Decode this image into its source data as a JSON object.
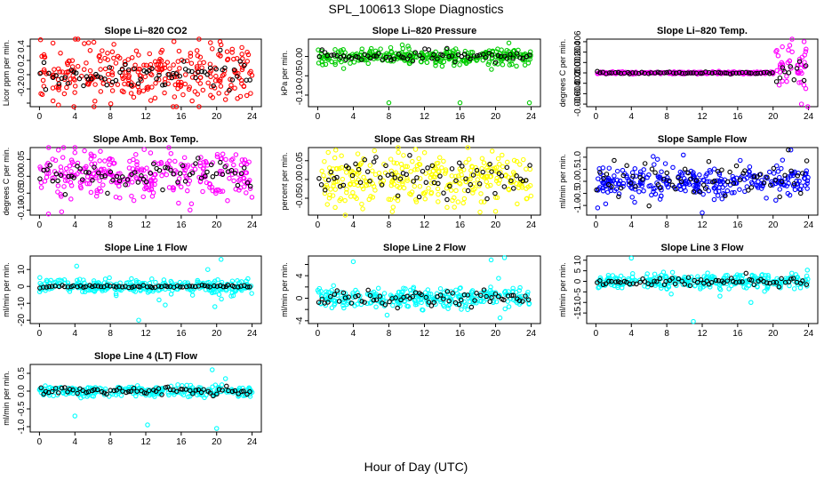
{
  "figure": {
    "title": "SPL_100613  Slope Diagnostics",
    "xlabel": "Hour of Day (UTC)"
  },
  "chart_data": [
    {
      "type": "scatter",
      "title": "Slope Li–820 CO2",
      "ylabel": "Licor ppm per min.",
      "color": "#ff0000",
      "xlim": [
        0,
        24
      ],
      "xticks": [
        0,
        4,
        8,
        12,
        16,
        20,
        24
      ],
      "ylim": [
        -0.45,
        0.5
      ],
      "yticks": [
        -0.4,
        -0.2,
        0.0,
        0.2,
        0.4
      ],
      "ytick_labels": [
        "",
        "-0.2",
        "0.0",
        "0.2",
        "0.4"
      ],
      "black_mean": 0.0,
      "black_sd": 0.1,
      "colored_sd": 0.2,
      "seed": 11,
      "outliers": [
        {
          "x": 19.3,
          "y": 0.45
        },
        {
          "x": 20.5,
          "y": 0.42
        },
        {
          "x": 21.0,
          "y": -0.35
        }
      ]
    },
    {
      "type": "scatter",
      "title": "Slope Li–820 Pressure",
      "ylabel": "kPa per min.",
      "color": "#00cc00",
      "xlim": [
        0,
        24
      ],
      "xticks": [
        0,
        4,
        8,
        12,
        16,
        20,
        24
      ],
      "ylim": [
        -0.13,
        0.045
      ],
      "yticks": [
        -0.1,
        -0.05,
        0.0
      ],
      "ytick_labels": [
        "-0.10",
        "-0.05",
        "0.00"
      ],
      "black_mean": 0.0,
      "black_sd": 0.006,
      "colored_sd": 0.01,
      "seed": 22,
      "outliers": [
        {
          "x": 8.0,
          "y": -0.12
        },
        {
          "x": 16.0,
          "y": -0.12
        },
        {
          "x": 23.8,
          "y": -0.12
        },
        {
          "x": 9.5,
          "y": 0.03
        },
        {
          "x": 21.5,
          "y": 0.035
        }
      ]
    },
    {
      "type": "scatter",
      "title": "Slope Li–820 Temp.",
      "ylabel": "degrees C per min.",
      "color": "#ff00ff",
      "xlim": [
        0,
        24
      ],
      "xticks": [
        0,
        4,
        8,
        12,
        16,
        20,
        24
      ],
      "ylim": [
        -0.0065,
        0.0065
      ],
      "yticks": [
        -0.006,
        -0.004,
        -0.002,
        0.0,
        0.002,
        0.004,
        0.006
      ],
      "ytick_labels": [
        "-0.006",
        "-0.004",
        "-0.002",
        "0.000",
        "0.002",
        "0.004",
        "0.006"
      ],
      "black_mean": 0.0,
      "black_sd": 0.0001,
      "colored_sd": 0.0001,
      "seed": 33,
      "late_spread": {
        "from": 20.0,
        "sd": 0.003
      },
      "outliers": [
        {
          "x": 23.5,
          "y": 0.006
        },
        {
          "x": 23.2,
          "y": -0.006
        }
      ]
    },
    {
      "type": "scatter",
      "title": "Slope Amb. Box Temp.",
      "ylabel": "degrees C per min.",
      "color": "#ff00ff",
      "xlim": [
        0,
        24
      ],
      "xticks": [
        0,
        4,
        8,
        12,
        16,
        20,
        24
      ],
      "ylim": [
        -0.115,
        0.085
      ],
      "yticks": [
        -0.1,
        -0.05,
        0.0,
        0.05
      ],
      "ytick_labels": [
        "-0.10",
        "-0.05",
        "0.00",
        "0.05"
      ],
      "black_mean": 0.0,
      "black_sd": 0.02,
      "colored_sd": 0.035,
      "seed": 44,
      "outliers": [
        {
          "x": 2.5,
          "y": -0.105
        },
        {
          "x": 4.0,
          "y": 0.07
        },
        {
          "x": 17.0,
          "y": -0.1
        }
      ]
    },
    {
      "type": "scatter",
      "title": "Slope Gas Stream RH",
      "ylabel": "percent per min.",
      "color": "#ffff00",
      "xlim": [
        0,
        24
      ],
      "xticks": [
        0,
        4,
        8,
        12,
        16,
        20,
        24
      ],
      "ylim": [
        -0.095,
        0.085
      ],
      "yticks": [
        -0.05,
        0.0,
        0.05
      ],
      "ytick_labels": [
        "-0.05",
        "0.00",
        "0.05"
      ],
      "black_mean": 0.0,
      "black_sd": 0.025,
      "colored_sd": 0.035,
      "seed": 55,
      "outliers": [
        {
          "x": 11.0,
          "y": 0.08
        },
        {
          "x": 20.0,
          "y": -0.085
        }
      ]
    },
    {
      "type": "scatter",
      "title": "Slope Sample Flow",
      "ylabel": "ml/min per min.",
      "color": "#0000ff",
      "xlim": [
        0,
        24
      ],
      "xticks": [
        0,
        4,
        8,
        12,
        16,
        20,
        24
      ],
      "ylim": [
        -1.4,
        1.4
      ],
      "yticks": [
        -1.0,
        -0.5,
        0.0,
        0.5,
        1.0
      ],
      "ytick_labels": [
        "-1.0",
        "-0.5",
        "0.0",
        "0.5",
        "1.0"
      ],
      "black_mean": 0.0,
      "black_sd": 0.45,
      "colored_sd": 0.3,
      "seed": 66,
      "outliers": [
        {
          "x": 12.0,
          "y": -1.3
        },
        {
          "x": 22.0,
          "y": 1.3
        },
        {
          "x": 0.2,
          "y": -1.1
        }
      ]
    },
    {
      "type": "scatter",
      "title": "Slope Line 1 Flow",
      "ylabel": "ml/min per min.",
      "color": "#00ffff",
      "xlim": [
        0,
        24
      ],
      "xticks": [
        0,
        4,
        8,
        12,
        16,
        20,
        24
      ],
      "ylim": [
        -22,
        18
      ],
      "yticks": [
        -20,
        -10,
        0,
        10
      ],
      "ytick_labels": [
        "-20",
        "-10",
        "0",
        "10"
      ],
      "black_mean": 0.0,
      "black_sd": 0.4,
      "colored_sd": 2.0,
      "seed": 77,
      "outliers": [
        {
          "x": 4.2,
          "y": 12
        },
        {
          "x": 11.2,
          "y": -20
        },
        {
          "x": 13.5,
          "y": -8
        },
        {
          "x": 14.2,
          "y": -11
        },
        {
          "x": 20.5,
          "y": 16
        },
        {
          "x": 19.8,
          "y": -12
        },
        {
          "x": 19.0,
          "y": 10
        }
      ]
    },
    {
      "type": "scatter",
      "title": "Slope Line 2 Flow",
      "ylabel": "ml/min per min.",
      "color": "#00ffff",
      "xlim": [
        0,
        24
      ],
      "xticks": [
        0,
        4,
        8,
        12,
        16,
        20,
        24
      ],
      "ylim": [
        -4.5,
        7.5
      ],
      "yticks": [
        -4,
        -2,
        0,
        2,
        4,
        6
      ],
      "ytick_labels": [
        "-4",
        "",
        "0",
        "",
        "4",
        ""
      ],
      "black_mean": 0.0,
      "black_sd": 0.7,
      "colored_sd": 0.9,
      "seed": 88,
      "outliers": [
        {
          "x": 4.0,
          "y": 6.5
        },
        {
          "x": 19.5,
          "y": 6.8
        },
        {
          "x": 21.0,
          "y": 7.2
        },
        {
          "x": 20.5,
          "y": -3.5
        },
        {
          "x": 7.8,
          "y": -3.0
        },
        {
          "x": 21.5,
          "y": -1.5
        }
      ]
    },
    {
      "type": "scatter",
      "title": "Slope Line 3 Flow",
      "ylabel": "ml/min per min.",
      "color": "#00ffff",
      "xlim": [
        0,
        24
      ],
      "xticks": [
        0,
        4,
        8,
        12,
        16,
        20,
        24
      ],
      "ylim": [
        -20,
        12
      ],
      "yticks": [
        -15,
        -10,
        -5,
        0,
        5,
        10
      ],
      "ytick_labels": [
        "-15",
        "-10",
        "-5",
        "0",
        "5",
        "10"
      ],
      "black_mean": 0.0,
      "black_sd": 1.2,
      "colored_sd": 1.8,
      "seed": 99,
      "outliers": [
        {
          "x": 4.0,
          "y": 11
        },
        {
          "x": 11.0,
          "y": -19
        },
        {
          "x": 8.5,
          "y": -6
        },
        {
          "x": 14.0,
          "y": -7
        },
        {
          "x": 17.5,
          "y": -10
        }
      ]
    },
    {
      "type": "scatter",
      "title": "Slope Line 4 (LT) Flow",
      "ylabel": "ml/min per min.",
      "color": "#00ffff",
      "xlim": [
        0,
        24
      ],
      "xticks": [
        0,
        4,
        8,
        12,
        16,
        20,
        24
      ],
      "ylim": [
        -1.15,
        0.75
      ],
      "yticks": [
        -1.0,
        -0.5,
        0.0,
        0.5
      ],
      "ytick_labels": [
        "-1.0",
        "-0.5",
        "0.0",
        "0.5"
      ],
      "black_mean": 0.0,
      "black_sd": 0.06,
      "colored_sd": 0.07,
      "seed": 111,
      "outliers": [
        {
          "x": 4.0,
          "y": -0.7
        },
        {
          "x": 12.2,
          "y": -0.95
        },
        {
          "x": 20.0,
          "y": -1.05
        },
        {
          "x": 19.5,
          "y": 0.6
        },
        {
          "x": 21.0,
          "y": 0.35
        }
      ]
    }
  ]
}
